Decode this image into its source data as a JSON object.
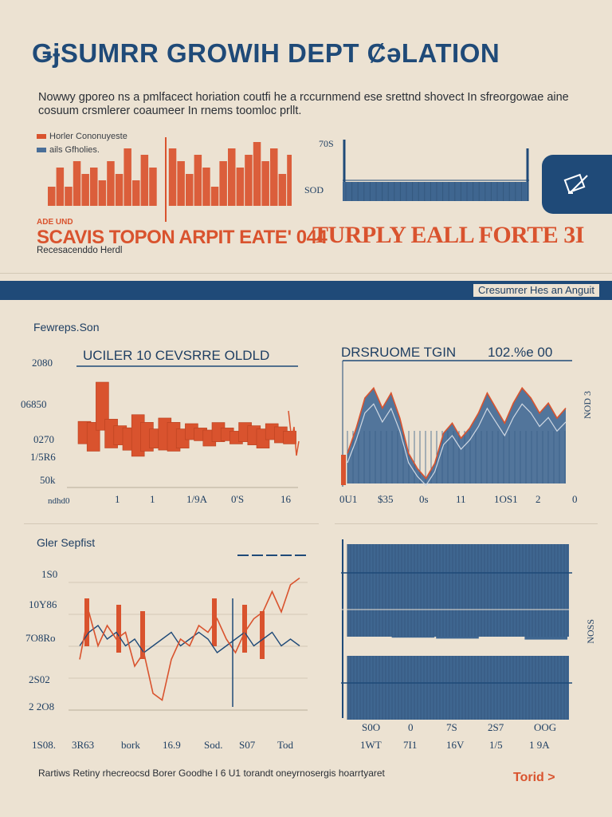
{
  "header": {
    "title": "ǤɉSUMRR GROWIH DEPT ȻǝLATION",
    "subtitle": "Nowwy gporeo ns a pmlfacect horiation coutfi he a rccurnmend ese srettnd shovect In sfreorgowae aine cosuum crsmlerer coaumeer In rnems toomloc prllt."
  },
  "top_left": {
    "legend": [
      {
        "label": "Horler Cononuyeste",
        "color": "#d9532e"
      },
      {
        "label": "ails Gfholies.",
        "color": "#4a6f98"
      }
    ],
    "tag": "ADE UND",
    "headline": "SCAVIS TOPON ARPIT EATE' 044",
    "note": "Recesacenddo Herdl"
  },
  "top_right": {
    "tick_top": "70S",
    "tick_mid": "SOD",
    "headline": "TURPLY EALL FORTE 3I"
  },
  "band": {
    "label": "Cresumrer Hes an Anguit"
  },
  "panel_a": {
    "section_label": "Fewreps.Son",
    "chart_title": "UCILER 10 CEVSRRE OLDLD",
    "y_ticks": [
      "2080",
      "06850",
      "0270",
      "1/5R6",
      "50k"
    ],
    "x_ticks": [
      "ndhd0",
      "1",
      "1",
      "1/9A",
      "0'S",
      "16"
    ]
  },
  "panel_b": {
    "chart_title": "DRSRUOME TGIN",
    "chart_value": "102.%e 00",
    "right_label": "NOD 3",
    "x_ticks": [
      "0U1",
      "$35",
      "0s",
      "11",
      "1OS1",
      "2",
      "0"
    ]
  },
  "panel_c": {
    "section_label": "Gler Sepfist",
    "y_ticks": [
      "1S0",
      "10Y86",
      "7O8Ro",
      "2S02",
      "2 2O8"
    ],
    "x_ticks": [
      "1S08.",
      "3R63",
      "bork",
      "16.9",
      "Sod.",
      "S07",
      "Tod"
    ]
  },
  "panel_d": {
    "right_label": "NOSS",
    "x_ticks_top": [
      "S0O",
      "0",
      "7S",
      "2S7",
      "OOG"
    ],
    "x_ticks_bottom": [
      "1WT",
      "7I1",
      "16V",
      "1/5",
      "1 9A"
    ]
  },
  "footer": {
    "text": "Rartiws Retiny rhecreocsd Borer Goodhe I 6 U1 torandt oneyrnosergis hoarrtyaret",
    "link": "Torid >"
  },
  "colors": {
    "navy": "#1f4a78",
    "red": "#d9532e",
    "slate": "#4a6f98",
    "paper": "#ece2d2"
  },
  "chart_data": [
    {
      "type": "bar",
      "title": "",
      "series": [
        {
          "name": "Horler Cononuyeste",
          "values": [
            3,
            6,
            3,
            7,
            5,
            6,
            4,
            7,
            5,
            9,
            4,
            8,
            6,
            9,
            7,
            5,
            8,
            6,
            3,
            7,
            9,
            6,
            8,
            10,
            7,
            9,
            5,
            8
          ]
        }
      ]
    },
    {
      "type": "bar",
      "title": "TURPLY EALL FORTE 3I",
      "categories": [
        "70S",
        "SOD"
      ],
      "series": [
        {
          "values": [
            1,
            0.3
          ]
        }
      ]
    },
    {
      "type": "bar",
      "title": "UCILER 10 CEVSRRE OLDLD",
      "xlabel": "",
      "ylabel": "",
      "y_ticks": [
        "2080",
        "06850",
        "0270",
        "1/5R6",
        "50k"
      ],
      "x_ticks": [
        "ndhd0",
        "1",
        "1",
        "1/9A",
        "0'S",
        "16"
      ],
      "series": [
        {
          "name": "",
          "values": [
            0.35,
            0.45,
            0.75,
            0.45,
            0.3,
            0.35,
            0.65,
            0.45,
            0.3,
            0.5,
            0.45,
            0.3,
            0.25,
            0.2,
            0.25,
            0.3,
            0.2,
            0.2,
            0.3,
            0.3,
            0.3,
            0.25,
            0.25,
            0.2
          ]
        }
      ]
    },
    {
      "type": "area",
      "title": "DRSRUOME TGIN",
      "x_ticks": [
        "0U1",
        "$35",
        "0s",
        "11",
        "1OS1",
        "2",
        "0"
      ],
      "series": [
        {
          "name": "",
          "values": [
            0.3,
            0.55,
            0.85,
            0.95,
            0.75,
            0.9,
            0.65,
            0.3,
            0.15,
            0.05,
            0.2,
            0.5,
            0.6,
            0.45,
            0.55,
            0.7,
            0.9,
            0.75,
            0.6,
            0.8,
            0.95,
            0.85,
            0.7,
            0.8,
            0.65,
            0.75
          ]
        }
      ]
    },
    {
      "type": "line",
      "title": "",
      "y_ticks": [
        "1S0",
        "10Y86",
        "7O8Ro",
        "2S02",
        "2 2O8"
      ],
      "x_ticks": [
        "1S08.",
        "3R63",
        "bork",
        "16.9",
        "Sod.",
        "S07",
        "Tod"
      ],
      "series": [
        {
          "name": "",
          "values": [
            0.35,
            0.7,
            0.45,
            0.6,
            0.5,
            0.55,
            0.3,
            0.4,
            0.1,
            0.05,
            0.35,
            0.5,
            0.45,
            0.6,
            0.55,
            0.65,
            0.5,
            0.4,
            0.55,
            0.65,
            0.7,
            0.85,
            0.7,
            0.9,
            0.95
          ]
        },
        {
          "name": "",
          "values": [
            0.45,
            0.55,
            0.6,
            0.5,
            0.55,
            0.45,
            0.5,
            0.4,
            0.45,
            0.5,
            0.55,
            0.45,
            0.5,
            0.55,
            0.5,
            0.4,
            0.45,
            0.5,
            0.55,
            0.45,
            0.5,
            0.55,
            0.45,
            0.5,
            0.45
          ]
        }
      ]
    },
    {
      "type": "bar",
      "title": "",
      "x_ticks": [
        "S0O",
        "0",
        "7S",
        "2S7",
        "OOG"
      ],
      "series": [
        {
          "name": "",
          "values": [
            1.0,
            0.95,
            0.9,
            1.0,
            0.85
          ]
        }
      ]
    }
  ]
}
